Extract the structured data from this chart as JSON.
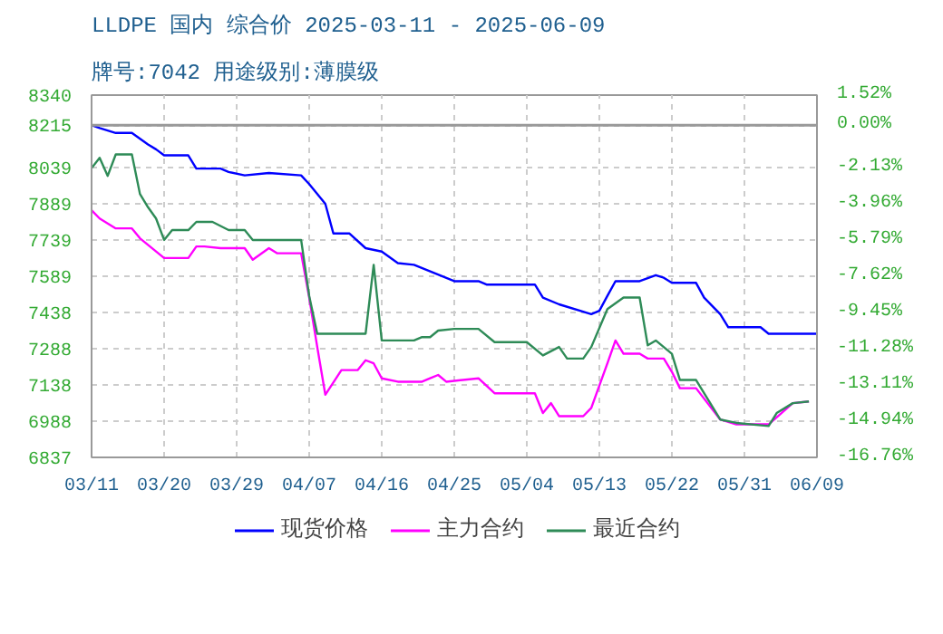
{
  "chart_data": {
    "type": "line",
    "title": "LLDPE 国内 综合价 2025-03-11 - 2025-06-09",
    "subtitle": "牌号:7042 用途级别:薄膜级",
    "xlim": [
      "2025-03-11",
      "2025-06-09"
    ],
    "xticks": [
      {
        "value": "2025-03-11",
        "label": "03/11"
      },
      {
        "value": "2025-03-20",
        "label": "03/20"
      },
      {
        "value": "2025-03-29",
        "label": "03/29"
      },
      {
        "value": "2025-04-07",
        "label": "04/07"
      },
      {
        "value": "2025-04-16",
        "label": "04/16"
      },
      {
        "value": "2025-04-25",
        "label": "04/25"
      },
      {
        "value": "2025-05-04",
        "label": "05/04"
      },
      {
        "value": "2025-05-13",
        "label": "05/13"
      },
      {
        "value": "2025-05-22",
        "label": "05/22"
      },
      {
        "value": "2025-05-31",
        "label": "05/31"
      },
      {
        "value": "2025-06-09",
        "label": "06/09"
      }
    ],
    "ylim": [
      6837,
      8340
    ],
    "yticks": [
      8340,
      8215,
      8039,
      7889,
      7739,
      7589,
      7438,
      7288,
      7138,
      6988,
      6837
    ],
    "y2lim": [
      -16.76,
      1.52
    ],
    "y2ticks": [
      {
        "value": 1.52,
        "label": "1.52%"
      },
      {
        "value": 0,
        "label": "0.00%"
      },
      {
        "value": -2.13,
        "label": "-2.13%"
      },
      {
        "value": -3.96,
        "label": "-3.96%"
      },
      {
        "value": -5.79,
        "label": "-5.79%"
      },
      {
        "value": -7.62,
        "label": "-7.62%"
      },
      {
        "value": -9.45,
        "label": "-9.45%"
      },
      {
        "value": -11.28,
        "label": "-11.28%"
      },
      {
        "value": -13.11,
        "label": "-13.11%"
      },
      {
        "value": -14.94,
        "label": "-14.94%"
      },
      {
        "value": -16.76,
        "label": "-16.76%"
      }
    ],
    "ref_lines": [
      {
        "axis": "y",
        "value": 8215,
        "color": "#999999",
        "line_style": "solid"
      }
    ],
    "grid": true,
    "legend": "bottom",
    "marker": "none",
    "line_style": "solid",
    "series": [
      {
        "name": "现货价格",
        "color": "#0000ff",
        "x": [
          "2025-03-11",
          "2025-03-12",
          "2025-03-14",
          "2025-03-16",
          "2025-03-18",
          "2025-03-19",
          "2025-03-20",
          "2025-03-23",
          "2025-03-24",
          "2025-03-27",
          "2025-03-28",
          "2025-03-30",
          "2025-04-02",
          "2025-04-06",
          "2025-04-07",
          "2025-04-09",
          "2025-04-10",
          "2025-04-12",
          "2025-04-14",
          "2025-04-16",
          "2025-04-18",
          "2025-04-20",
          "2025-04-25",
          "2025-04-28",
          "2025-04-29",
          "2025-05-05",
          "2025-05-06",
          "2025-05-08",
          "2025-05-12",
          "2025-05-13",
          "2025-05-14",
          "2025-05-15",
          "2025-05-18",
          "2025-05-20",
          "2025-05-21",
          "2025-05-22",
          "2025-05-25",
          "2025-05-26",
          "2025-05-28",
          "2025-05-29",
          "2025-06-02",
          "2025-06-03",
          "2025-06-09"
        ],
        "values": [
          8215,
          8203,
          8183,
          8183,
          8135,
          8115,
          8090,
          8090,
          8035,
          8035,
          8021,
          8007,
          8017,
          8007,
          7971,
          7889,
          7766,
          7766,
          7705,
          7691,
          7643,
          7636,
          7568,
          7568,
          7554,
          7554,
          7500,
          7472,
          7431,
          7445,
          7507,
          7568,
          7568,
          7593,
          7582,
          7561,
          7561,
          7500,
          7431,
          7377,
          7377,
          7350,
          7350
        ]
      },
      {
        "name": "主力合约",
        "color": "#ff00ff",
        "x": [
          "2025-03-11",
          "2025-03-12",
          "2025-03-14",
          "2025-03-16",
          "2025-03-17",
          "2025-03-20",
          "2025-03-23",
          "2025-03-24",
          "2025-03-25",
          "2025-03-27",
          "2025-03-30",
          "2025-03-31",
          "2025-04-02",
          "2025-04-03",
          "2025-04-06",
          "2025-04-07",
          "2025-04-08",
          "2025-04-09",
          "2025-04-11",
          "2025-04-13",
          "2025-04-14",
          "2025-04-15",
          "2025-04-16",
          "2025-04-18",
          "2025-04-21",
          "2025-04-22",
          "2025-04-23",
          "2025-04-24",
          "2025-04-28",
          "2025-04-30",
          "2025-05-05",
          "2025-05-06",
          "2025-05-07",
          "2025-05-08",
          "2025-05-11",
          "2025-05-12",
          "2025-05-14",
          "2025-05-15",
          "2025-05-16",
          "2025-05-18",
          "2025-05-19",
          "2025-05-21",
          "2025-05-22",
          "2025-05-23",
          "2025-05-25",
          "2025-05-28",
          "2025-05-30",
          "2025-06-03",
          "2025-06-06",
          "2025-06-08"
        ],
        "values": [
          7862,
          7828,
          7787,
          7787,
          7746,
          7664,
          7664,
          7712,
          7712,
          7705,
          7705,
          7657,
          7705,
          7684,
          7684,
          7500,
          7295,
          7097,
          7199,
          7199,
          7240,
          7227,
          7165,
          7151,
          7151,
          7165,
          7179,
          7151,
          7165,
          7103,
          7103,
          7021,
          7062,
          7008,
          7008,
          7042,
          7227,
          7322,
          7267,
          7267,
          7247,
          7247,
          7192,
          7124,
          7124,
          6994,
          6974,
          6974,
          7062,
          7069
        ]
      },
      {
        "name": "最近合约",
        "color": "#2e8b57",
        "x": [
          "2025-03-11",
          "2025-03-12",
          "2025-03-13",
          "2025-03-14",
          "2025-03-16",
          "2025-03-17",
          "2025-03-18",
          "2025-03-19",
          "2025-03-20",
          "2025-03-21",
          "2025-03-23",
          "2025-03-24",
          "2025-03-26",
          "2025-03-28",
          "2025-03-30",
          "2025-03-31",
          "2025-04-06",
          "2025-04-07",
          "2025-04-08",
          "2025-04-14",
          "2025-04-15",
          "2025-04-16",
          "2025-04-20",
          "2025-04-21",
          "2025-04-22",
          "2025-04-23",
          "2025-04-25",
          "2025-04-28",
          "2025-04-30",
          "2025-05-04",
          "2025-05-06",
          "2025-05-08",
          "2025-05-09",
          "2025-05-11",
          "2025-05-12",
          "2025-05-14",
          "2025-05-16",
          "2025-05-18",
          "2025-05-19",
          "2025-05-20",
          "2025-05-22",
          "2025-05-23",
          "2025-05-25",
          "2025-05-28",
          "2025-05-30",
          "2025-06-03",
          "2025-06-04",
          "2025-06-06",
          "2025-06-08"
        ],
        "values": [
          8037,
          8080,
          8005,
          8094,
          8094,
          7930,
          7875,
          7828,
          7739,
          7780,
          7780,
          7814,
          7814,
          7780,
          7780,
          7739,
          7739,
          7507,
          7350,
          7350,
          7636,
          7322,
          7322,
          7336,
          7336,
          7363,
          7370,
          7370,
          7315,
          7315,
          7260,
          7295,
          7247,
          7247,
          7295,
          7452,
          7500,
          7500,
          7302,
          7322,
          7267,
          7158,
          7158,
          6994,
          6980,
          6967,
          7021,
          7062,
          7069
        ]
      }
    ]
  }
}
